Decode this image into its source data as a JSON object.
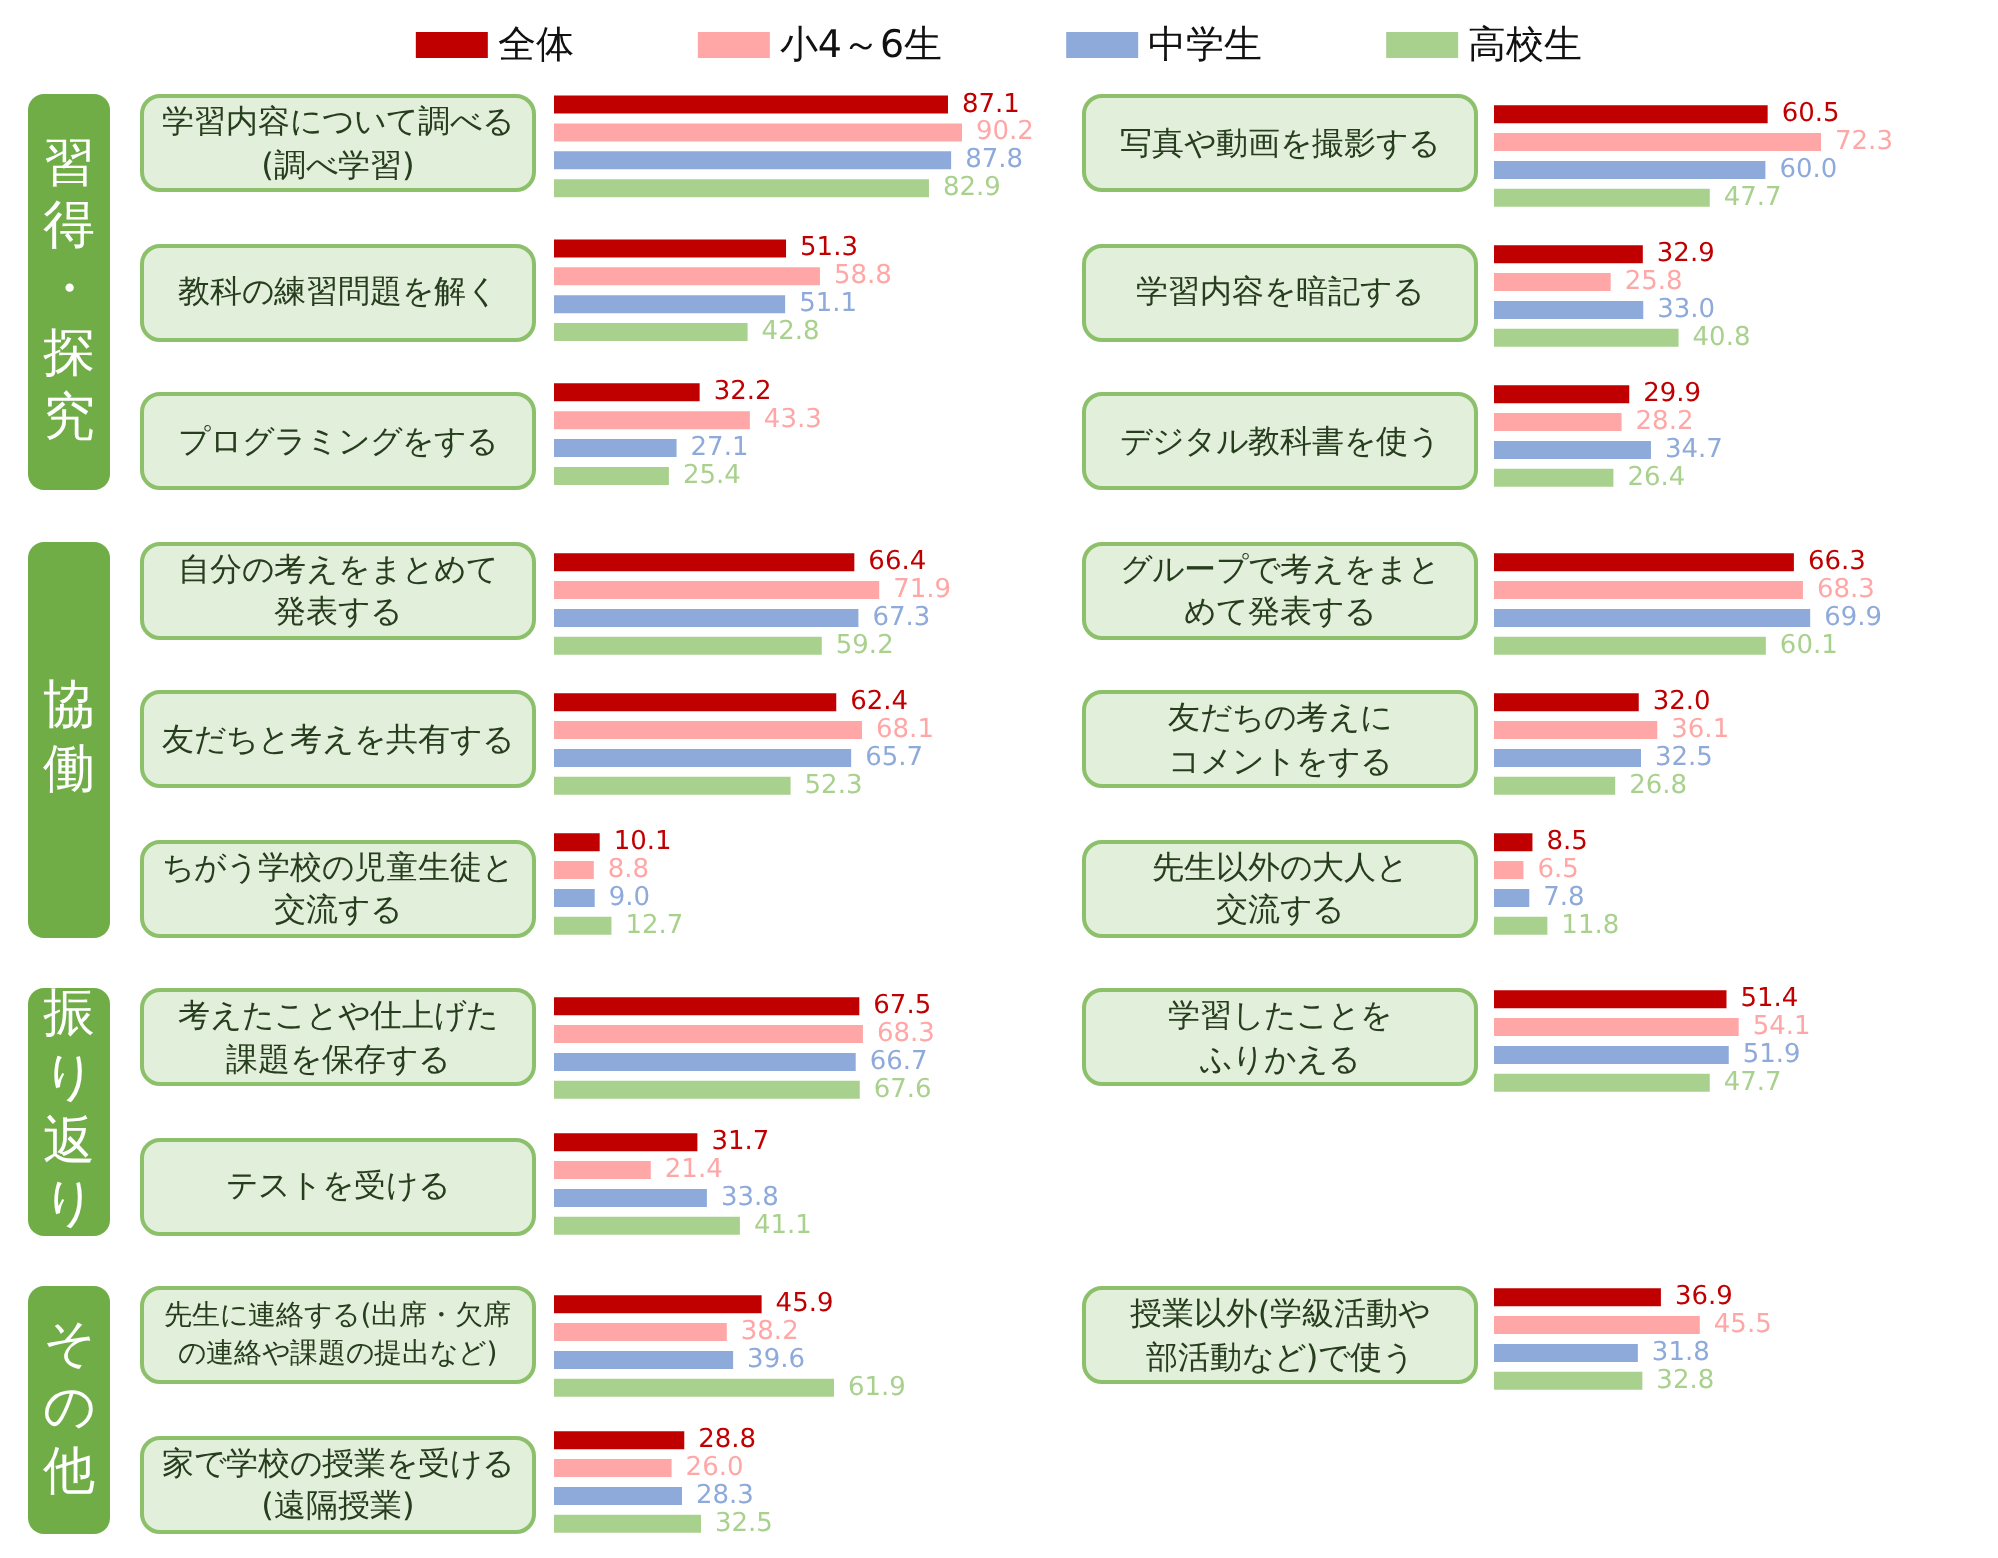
{
  "chart_data": [
    {
      "type": "bar",
      "orientation": "horizontal",
      "title": "習得・探究",
      "legend": "top",
      "categories": [
        "学習内容について調べる(調べ学習)",
        "教科の練習問題を解く",
        "プログラミングをする"
      ],
      "series": [
        {
          "name": "全体",
          "color": "#c00000",
          "values": [
            87.1,
            51.3,
            32.2
          ],
          "value_labels": [
            "87.1",
            "51.3",
            "32.2"
          ]
        },
        {
          "name": "小4～6生",
          "color": "#ffa7a7",
          "values": [
            90.2,
            58.8,
            43.3
          ],
          "value_labels": [
            "90.2",
            "58.8",
            "43.3"
          ]
        },
        {
          "name": "中学生",
          "color": "#8eaadb",
          "values": [
            87.8,
            51.1,
            27.1
          ],
          "value_labels": [
            "87.8",
            "51.1",
            "27.1"
          ]
        },
        {
          "name": "高校生",
          "color": "#a9d18e",
          "values": [
            82.9,
            42.8,
            25.4
          ],
          "value_labels": [
            "82.9",
            "42.8",
            "25.4"
          ]
        }
      ]
    },
    {
      "type": "bar",
      "orientation": "horizontal",
      "categories": [
        "写真や動画を撮影する",
        "学習内容を暗記する",
        "デジタル教科書を使う"
      ],
      "series": [
        {
          "color": "#c00000",
          "values": [
            60.5,
            32.9,
            29.9
          ],
          "value_labels": [
            "60.5",
            "32.9",
            "29.9"
          ]
        },
        {
          "color": "#ffa7a7",
          "values": [
            72.3,
            25.8,
            28.2
          ],
          "value_labels": [
            "72.3",
            "25.8",
            "28.2"
          ]
        },
        {
          "color": "#8eaadb",
          "values": [
            60.0,
            33.0,
            34.7
          ],
          "value_labels": [
            "60.0",
            "33.0",
            "34.7"
          ]
        },
        {
          "color": "#a9d18e",
          "values": [
            47.7,
            40.8,
            26.4
          ],
          "value_labels": [
            "47.7",
            "40.8",
            "26.4"
          ]
        }
      ]
    },
    {
      "type": "bar",
      "orientation": "horizontal",
      "title": "協働",
      "categories": [
        "自分の考えをまとめて発表する",
        "友だちと考えを共有する",
        "ちがう学校の児童生徒と交流する"
      ],
      "series": [
        {
          "color": "#c00000",
          "values": [
            66.4,
            62.4,
            10.1
          ],
          "value_labels": [
            "66.4",
            "62.4",
            "10.1"
          ]
        },
        {
          "color": "#ffa7a7",
          "values": [
            71.9,
            68.1,
            8.8
          ],
          "value_labels": [
            "71.9",
            "68.1",
            "8.8"
          ]
        },
        {
          "color": "#8eaadb",
          "values": [
            67.3,
            65.7,
            9.0
          ],
          "value_labels": [
            "67.3",
            "65.7",
            "9.0"
          ]
        },
        {
          "color": "#a9d18e",
          "values": [
            59.2,
            52.3,
            12.7
          ],
          "value_labels": [
            "59.2",
            "52.3",
            "12.7"
          ]
        }
      ]
    },
    {
      "type": "bar",
      "orientation": "horizontal",
      "categories": [
        "グループで考えをまとめて発表する",
        "友だちの考えにコメントをする",
        "先生以外の大人と交流する"
      ],
      "series": [
        {
          "color": "#c00000",
          "values": [
            66.3,
            32.0,
            8.5
          ],
          "value_labels": [
            "66.3",
            "32.0",
            "8.5"
          ]
        },
        {
          "color": "#ffa7a7",
          "values": [
            68.3,
            36.1,
            6.5
          ],
          "value_labels": [
            "68.3",
            "36.1",
            "6.5"
          ]
        },
        {
          "color": "#8eaadb",
          "values": [
            69.9,
            32.5,
            7.8
          ],
          "value_labels": [
            "69.9",
            "32.5",
            "7.8"
          ]
        },
        {
          "color": "#a9d18e",
          "values": [
            60.1,
            26.8,
            11.8
          ],
          "value_labels": [
            "60.1",
            "26.8",
            "11.8"
          ]
        }
      ]
    },
    {
      "type": "bar",
      "orientation": "horizontal",
      "title": "振り返り",
      "categories": [
        "考えたことや仕上げた課題を保存する",
        "テストを受ける"
      ],
      "series": [
        {
          "color": "#c00000",
          "values": [
            67.5,
            31.7
          ],
          "value_labels": [
            "67.5",
            "31.7"
          ]
        },
        {
          "color": "#ffa7a7",
          "values": [
            68.3,
            21.4
          ],
          "value_labels": [
            "68.3",
            "21.4"
          ]
        },
        {
          "color": "#8eaadb",
          "values": [
            66.7,
            33.8
          ],
          "value_labels": [
            "66.7",
            "33.8"
          ]
        },
        {
          "color": "#a9d18e",
          "values": [
            67.6,
            41.1
          ],
          "value_labels": [
            "67.6",
            "41.1"
          ]
        }
      ]
    },
    {
      "type": "bar",
      "orientation": "horizontal",
      "categories": [
        "学習したことをふりかえる"
      ],
      "series": [
        {
          "color": "#c00000",
          "values": [
            51.4
          ],
          "value_labels": [
            "51.4"
          ]
        },
        {
          "color": "#ffa7a7",
          "values": [
            54.1
          ],
          "value_labels": [
            "54.1"
          ]
        },
        {
          "color": "#8eaadb",
          "values": [
            51.9
          ],
          "value_labels": [
            "51.9"
          ]
        },
        {
          "color": "#a9d18e",
          "values": [
            47.7
          ],
          "value_labels": [
            "47.7"
          ]
        }
      ]
    },
    {
      "type": "bar",
      "orientation": "horizontal",
      "title": "その他",
      "categories": [
        "先生に連絡する(出席・欠席の連絡や課題の提出など)",
        "家で学校の授業を受ける(遠隔授業)"
      ],
      "series": [
        {
          "color": "#c00000",
          "values": [
            45.9,
            28.8
          ],
          "value_labels": [
            "45.9",
            "28.8"
          ]
        },
        {
          "color": "#ffa7a7",
          "values": [
            38.2,
            26.0
          ],
          "value_labels": [
            "38.2",
            "26.0"
          ]
        },
        {
          "color": "#8eaadb",
          "values": [
            39.6,
            28.3
          ],
          "value_labels": [
            "39.6",
            "28.3"
          ]
        },
        {
          "color": "#a9d18e",
          "values": [
            61.9,
            32.5
          ],
          "value_labels": [
            "61.9",
            "32.5"
          ]
        }
      ]
    },
    {
      "type": "bar",
      "orientation": "horizontal",
      "categories": [
        "授業以外(学級活動や部活動など)で使う"
      ],
      "series": [
        {
          "color": "#c00000",
          "values": [
            36.9
          ],
          "value_labels": [
            "36.9"
          ]
        },
        {
          "color": "#ffa7a7",
          "values": [
            45.5
          ],
          "value_labels": [
            "45.5"
          ]
        },
        {
          "color": "#8eaadb",
          "values": [
            31.8
          ],
          "value_labels": [
            "31.8"
          ]
        },
        {
          "color": "#a9d18e",
          "values": [
            32.8
          ],
          "value_labels": [
            "32.8"
          ]
        }
      ]
    }
  ]
}
